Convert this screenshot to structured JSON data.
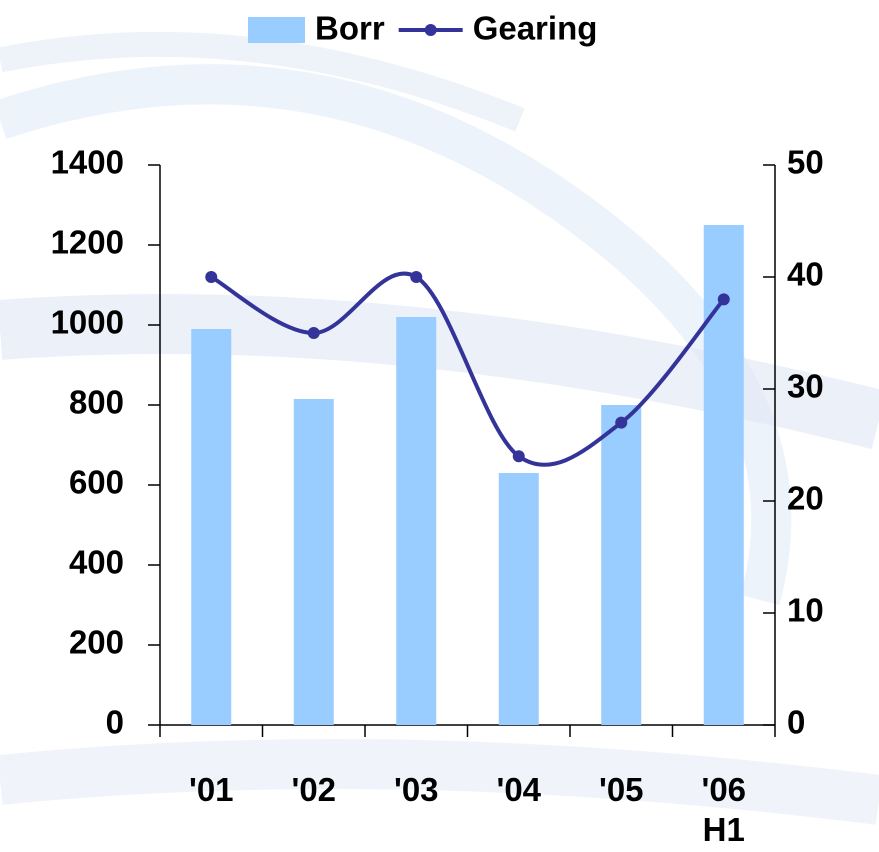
{
  "chart_data": {
    "type": "bar-line",
    "categories": [
      "'01",
      "'02",
      "'03",
      "'04",
      "'05",
      "'06 H1"
    ],
    "series": [
      {
        "name": "Borr",
        "type": "bar",
        "color": "#99ccff",
        "values": [
          990,
          815,
          1020,
          630,
          800,
          1250
        ]
      },
      {
        "name": "Gearing",
        "type": "line",
        "axis": "y2",
        "color": "#333399",
        "values": [
          40,
          35,
          40,
          24,
          27,
          38
        ]
      }
    ],
    "ylim": [
      0,
      1400
    ],
    "yticks": [
      0,
      200,
      400,
      600,
      800,
      1000,
      1200,
      1400
    ],
    "y2lim": [
      0,
      50
    ],
    "y2ticks": [
      0,
      10,
      20,
      30,
      40,
      50
    ],
    "legend": "top"
  }
}
